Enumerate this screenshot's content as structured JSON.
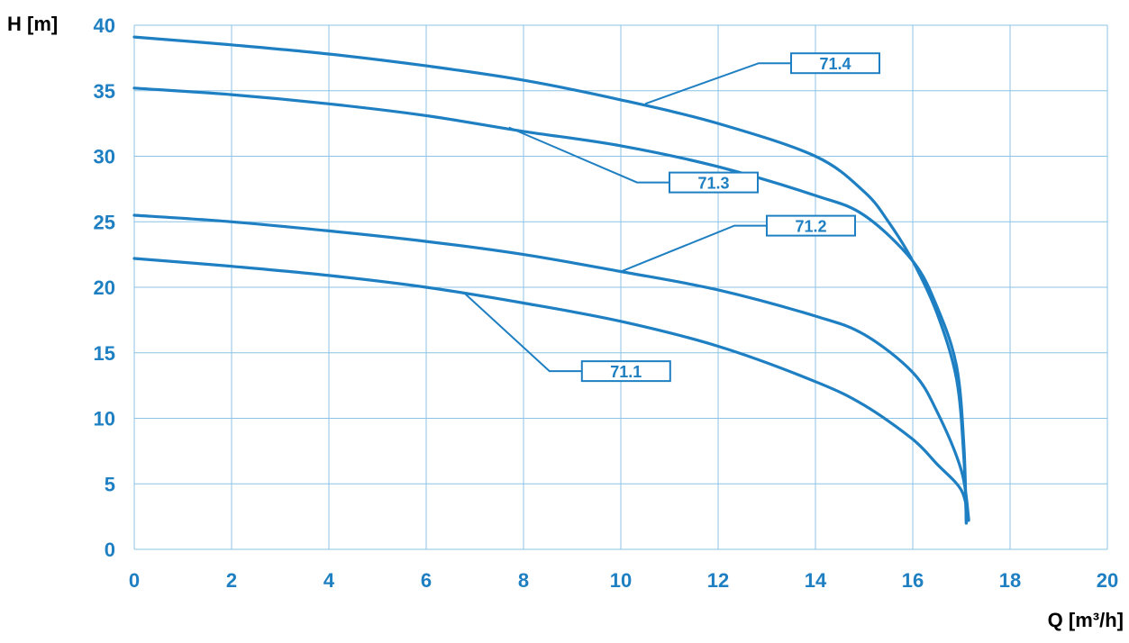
{
  "chart_data": {
    "type": "line",
    "title": "",
    "xlabel": "Q [m³/h]",
    "ylabel": "H [m]",
    "xlim": [
      0,
      20
    ],
    "ylim": [
      0,
      40
    ],
    "xticks": [
      "0",
      "2",
      "4",
      "6",
      "8",
      "10",
      "12",
      "14",
      "16",
      "18",
      "20"
    ],
    "yticks": [
      "0",
      "5",
      "10",
      "15",
      "20",
      "25",
      "30",
      "35",
      "40"
    ],
    "grid": true,
    "legend": "none",
    "colors": {
      "curve": "#1e7fc2",
      "text": "#1e7fc2",
      "grid": "#8cc3e6"
    },
    "series": [
      {
        "name": "71.1",
        "x": [
          0,
          2,
          4,
          6,
          8,
          10,
          12,
          14,
          15,
          16,
          16.5,
          17,
          17.15
        ],
        "y": [
          22.2,
          21.6,
          20.9,
          20.0,
          18.8,
          17.4,
          15.5,
          12.8,
          11.0,
          8.4,
          6.5,
          4.5,
          2.2
        ]
      },
      {
        "name": "71.2",
        "x": [
          0,
          2,
          4,
          6,
          8,
          10,
          12,
          14,
          15,
          16,
          16.5,
          17,
          17.15
        ],
        "y": [
          25.5,
          25.0,
          24.3,
          23.5,
          22.5,
          21.2,
          19.8,
          17.8,
          16.4,
          13.5,
          10.5,
          6.0,
          2.3
        ]
      },
      {
        "name": "71.3",
        "x": [
          0,
          2,
          4,
          6,
          8,
          10,
          12,
          14,
          15,
          16,
          16.5,
          16.9,
          17.05,
          17.1
        ],
        "y": [
          35.2,
          34.7,
          34.0,
          33.1,
          31.9,
          30.8,
          29.2,
          27.0,
          25.5,
          22.0,
          18.5,
          14.0,
          8.0,
          2.0
        ]
      },
      {
        "name": "71.4",
        "x": [
          0,
          2,
          4,
          6,
          8,
          10,
          12,
          14,
          15,
          15.5,
          16,
          16.5,
          16.9,
          17.05,
          17.1
        ],
        "y": [
          39.1,
          38.5,
          37.8,
          36.9,
          35.8,
          34.3,
          32.5,
          30.0,
          27.3,
          25.0,
          22.0,
          18.0,
          13.0,
          7.0,
          2.0
        ]
      }
    ],
    "annotations": [
      {
        "text": "71.4",
        "series": "71.4",
        "x": 10.5,
        "y": 34.0,
        "box_x": 13.5,
        "box_y": 37.1
      },
      {
        "text": "71.3",
        "series": "71.3",
        "x": 7.7,
        "y": 32.2,
        "box_x": 11.0,
        "box_y": 28.0
      },
      {
        "text": "71.2",
        "series": "71.2",
        "x": 10.0,
        "y": 21.2,
        "box_x": 13.0,
        "box_y": 24.7
      },
      {
        "text": "71.1",
        "series": "71.1",
        "x": 6.8,
        "y": 19.5,
        "box_x": 9.2,
        "box_y": 13.6
      }
    ]
  }
}
